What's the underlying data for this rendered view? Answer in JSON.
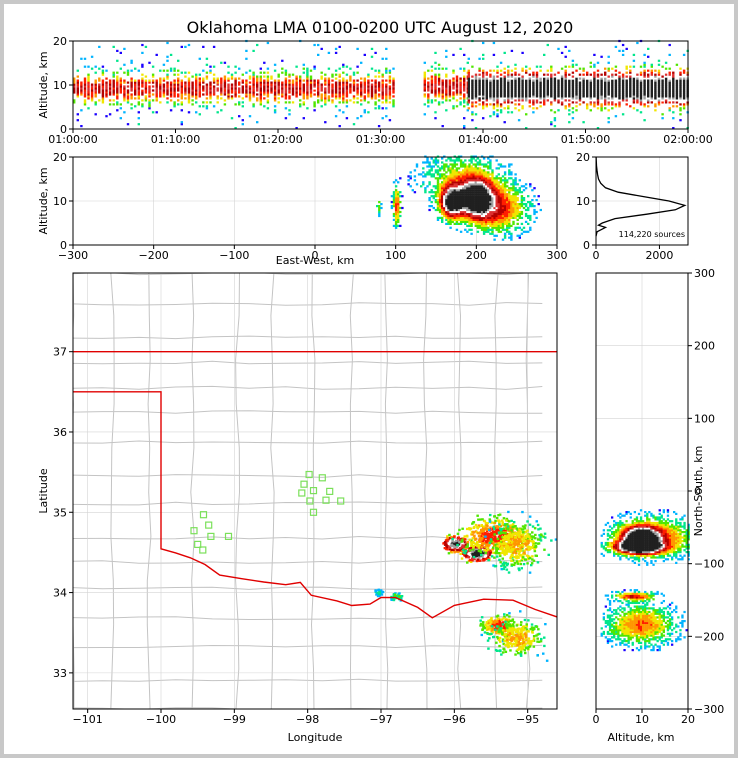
{
  "chart_data": [
    {
      "type": "heatmap",
      "panel": "time-altitude",
      "title": "Oklahoma LMA 0100-0200 UTC August 12, 2020",
      "xlabel": "",
      "ylabel": "Altitude, km",
      "x_tick_labels": [
        "01:00:00",
        "01:10:00",
        "01:20:00",
        "01:30:00",
        "01:40:00",
        "01:50:00",
        "02:00:00"
      ],
      "y_ticks": [
        0,
        10,
        20
      ],
      "xlim_minutes": [
        0,
        60
      ],
      "ylim": [
        0,
        20
      ],
      "gap_minutes": [
        31.2,
        34.2
      ],
      "bands": [
        {
          "t0": 0,
          "t1": 31.2,
          "alt_center": 9.0,
          "alt_spread": 2.2,
          "density": "moderate"
        },
        {
          "t0": 34.2,
          "t1": 38.5,
          "alt_center": 9.5,
          "alt_spread": 2.4,
          "density": "moderate"
        },
        {
          "t0": 38.5,
          "t1": 60,
          "alt_center": 9.0,
          "alt_spread": 2.6,
          "density": "high"
        }
      ]
    },
    {
      "type": "heatmap",
      "panel": "east-west-altitude",
      "xlabel": "East-West, km",
      "ylabel": "Altitude, km",
      "x_ticks": [
        -300,
        -200,
        -100,
        0,
        100,
        200,
        300
      ],
      "y_ticks": [
        0,
        10,
        20
      ],
      "xlim": [
        -300,
        300
      ],
      "ylim": [
        0,
        20
      ],
      "clusters": [
        {
          "x": 78,
          "z": 8.5,
          "sx": 2,
          "sz": 1.2,
          "peak": 0.5
        },
        {
          "x": 100,
          "z": 8.5,
          "sx": 3,
          "sz": 3,
          "peak": 0.9
        },
        {
          "x": 168,
          "z": 9.5,
          "sx": 10,
          "sz": 2.5,
          "peak": 1.6
        },
        {
          "x": 198,
          "z": 10.5,
          "sx": 14,
          "sz": 3,
          "peak": 1.6
        },
        {
          "x": 225,
          "z": 8,
          "sx": 25,
          "sz": 3.5,
          "peak": 0.9
        },
        {
          "x": 180,
          "z": 15,
          "sx": 35,
          "sz": 4,
          "peak": 0.5
        }
      ]
    },
    {
      "type": "line",
      "panel": "altitude-histogram",
      "annotation": "114,220 sources",
      "x_ticks": [
        0,
        2000
      ],
      "y_ticks": [
        0,
        10,
        20
      ],
      "xlim": [
        0,
        2900
      ],
      "ylim": [
        0,
        20
      ],
      "altitude_km": [
        2,
        3,
        4,
        4.5,
        5,
        6,
        7,
        8,
        9,
        10,
        11,
        12,
        13,
        14,
        15,
        16,
        17,
        18,
        19,
        20
      ],
      "sources": [
        0,
        30,
        300,
        80,
        200,
        600,
        1600,
        2500,
        2800,
        2300,
        1500,
        700,
        300,
        150,
        80,
        50,
        30,
        15,
        8,
        4
      ]
    },
    {
      "type": "scatter",
      "panel": "plan-view-map",
      "xlabel": "Longitude",
      "ylabel": "Latitude",
      "x_ticks": [
        -101,
        -100,
        -99,
        -98,
        -97,
        -96,
        -95
      ],
      "y_ticks": [
        33,
        34,
        35,
        36,
        37
      ],
      "xlim": [
        -101.2,
        -94.6
      ],
      "ylim": [
        32.55,
        37.98
      ],
      "state_border": {
        "north_lat": 37.0,
        "panhandle_south_lat": 36.5,
        "panhandle_east_lon": -100.0
      },
      "red_river": [
        [
          -100,
          34.56
        ],
        [
          -99.8,
          34.5
        ],
        [
          -99.6,
          34.42
        ],
        [
          -99.4,
          34.35
        ],
        [
          -99.2,
          34.2
        ],
        [
          -98.9,
          34.18
        ],
        [
          -98.6,
          34.15
        ],
        [
          -98.3,
          34.1
        ],
        [
          -98.1,
          34.12
        ],
        [
          -97.95,
          33.95
        ],
        [
          -97.6,
          33.9
        ],
        [
          -97.4,
          33.82
        ],
        [
          -97.15,
          33.85
        ],
        [
          -97.0,
          33.92
        ],
        [
          -96.8,
          33.95
        ],
        [
          -96.5,
          33.8
        ],
        [
          -96.3,
          33.7
        ],
        [
          -96.0,
          33.85
        ],
        [
          -95.6,
          33.9
        ],
        [
          -95.2,
          33.9
        ],
        [
          -94.9,
          33.78
        ],
        [
          -94.6,
          33.68
        ]
      ],
      "stations": [
        [
          -99.42,
          34.97
        ],
        [
          -99.55,
          34.77
        ],
        [
          -99.35,
          34.84
        ],
        [
          -99.32,
          34.7
        ],
        [
          -99.5,
          34.6
        ],
        [
          -99.43,
          34.53
        ],
        [
          -99.08,
          34.7
        ],
        [
          -97.98,
          35.47
        ],
        [
          -98.05,
          35.35
        ],
        [
          -97.92,
          35.27
        ],
        [
          -98.08,
          35.24
        ],
        [
          -97.8,
          35.43
        ],
        [
          -97.7,
          35.26
        ],
        [
          -97.97,
          35.14
        ],
        [
          -97.75,
          35.15
        ],
        [
          -97.55,
          35.14
        ],
        [
          -97.92,
          35.0
        ]
      ],
      "clusters": [
        {
          "lon": -96.0,
          "lat": 34.62,
          "slon": 0.09,
          "slat": 0.05,
          "peak": 1.6
        },
        {
          "lon": -95.7,
          "lat": 34.5,
          "slon": 0.1,
          "slat": 0.05,
          "peak": 1.7
        },
        {
          "lon": -95.45,
          "lat": 34.72,
          "slon": 0.25,
          "slat": 0.12,
          "peak": 0.9
        },
        {
          "lon": -95.15,
          "lat": 34.6,
          "slon": 0.2,
          "slat": 0.15,
          "peak": 0.7
        },
        {
          "lon": -95.4,
          "lat": 33.6,
          "slon": 0.12,
          "slat": 0.07,
          "peak": 0.9
        },
        {
          "lon": -95.15,
          "lat": 33.45,
          "slon": 0.18,
          "slat": 0.12,
          "peak": 0.7
        },
        {
          "lon": -96.8,
          "lat": 33.96,
          "slon": 0.05,
          "slat": 0.03,
          "peak": 0.4
        },
        {
          "lon": -97.05,
          "lat": 34.02,
          "slon": 0.03,
          "slat": 0.02,
          "peak": 0.3
        }
      ]
    },
    {
      "type": "heatmap",
      "panel": "altitude-north-south",
      "xlabel": "Altitude, km",
      "ylabel": "North-South, km",
      "x_ticks": [
        0,
        10,
        20
      ],
      "y_ticks": [
        300,
        200,
        100,
        0,
        -100,
        -200,
        -300
      ],
      "xlim": [
        0,
        20
      ],
      "ylim": [
        -300,
        300
      ],
      "clusters": [
        {
          "z": 9.5,
          "y": -65,
          "sz": 2.5,
          "sy": 10,
          "peak": 1.6
        },
        {
          "z": 9,
          "y": -78,
          "sz": 3.5,
          "sy": 6,
          "peak": 1.7
        },
        {
          "z": 12,
          "y": -65,
          "sz": 6,
          "sy": 18,
          "peak": 0.9
        },
        {
          "z": 8,
          "y": -146,
          "sz": 3,
          "sy": 4,
          "peak": 0.9
        },
        {
          "z": 9.5,
          "y": -185,
          "sz": 5,
          "sy": 18,
          "peak": 0.8
        }
      ]
    }
  ]
}
